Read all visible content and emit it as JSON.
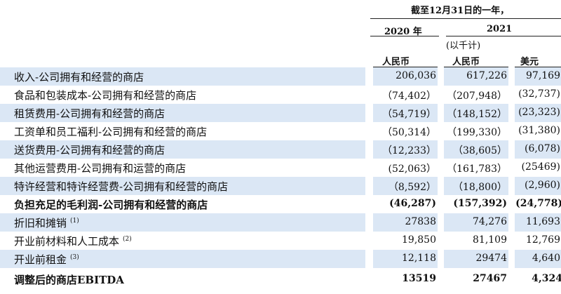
{
  "header": {
    "period": "截至12月31日的一年，",
    "year_2020": "2020 年",
    "year_2021": "2021",
    "unit": "(以千计)",
    "currency_2020": "人民币",
    "currency_2021_rmb": "人民币",
    "currency_2021_usd": "美元"
  },
  "rows": [
    {
      "label": "收入-公司拥有和经营的商店",
      "v2020": "206,036",
      "v2021_rmb": "617,226",
      "v2021_usd": "97,169"
    },
    {
      "label": "食品和包装成本-公司拥有和经营的商店",
      "v2020": "（74,402）",
      "v2021_rmb": "（207,948）",
      "v2021_usd": "(32,737)"
    },
    {
      "label": "租赁费用-公司拥有和经营的商店",
      "v2020": "（54,719）",
      "v2021_rmb": "（148,152）",
      "v2021_usd": "(23,323)"
    },
    {
      "label": "工资单和员工福利-公司拥有和经营的商店",
      "v2020": "（50,314）",
      "v2021_rmb": "（199,330）",
      "v2021_usd": "(31,380)"
    },
    {
      "label": "送货费用-公司拥有和经营的商店",
      "v2020": "（12,233）",
      "v2021_rmb": "（38,605）",
      "v2021_usd": "(6,078)"
    },
    {
      "label": "其他运营费用-公司拥有和运营的商店",
      "v2020": "(52,063）",
      "v2021_rmb": "（161,783）",
      "v2021_usd": "(25469)"
    },
    {
      "label": "特许经营和特许经营费-公司拥有和经营的商店",
      "v2020": "（8,592）",
      "v2021_rmb": "（18,800）",
      "v2021_usd": "(2,960)"
    },
    {
      "label": "负担充足的毛利润-公司拥有和经营的商店",
      "v2020": "(46,287)",
      "v2021_rmb": "(157,392)",
      "v2021_usd": "(24,778)"
    },
    {
      "label": "折旧和摊销",
      "note": "(1)",
      "v2020": "27838",
      "v2021_rmb": "74,276",
      "v2021_usd": "11,693"
    },
    {
      "label": "开业前材料和人工成本",
      "note": "(2)",
      "v2020": "19,850",
      "v2021_rmb": "81,109",
      "v2021_usd": "12,769"
    },
    {
      "label": "开业前租金",
      "note": "(3)",
      "v2020": "12,118",
      "v2021_rmb": "29474",
      "v2021_usd": "4,640"
    },
    {
      "label": "调整后的商店EBITDA",
      "v2020": "13519",
      "v2021_rmb": "27467",
      "v2021_usd": "4,324"
    }
  ]
}
